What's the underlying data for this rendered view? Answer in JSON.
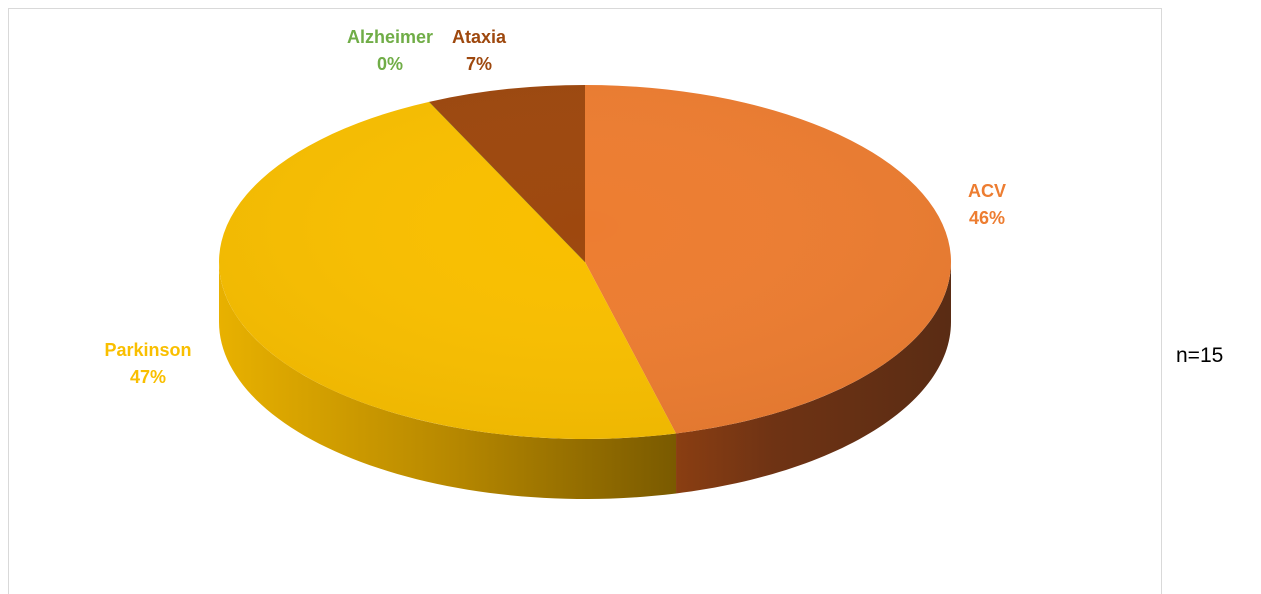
{
  "chart_data": {
    "type": "pie",
    "style": "3d",
    "title": "",
    "slices": [
      {
        "label": "ACV",
        "value": 46,
        "display": "46%",
        "color": "#ED7D31",
        "side_color": "#9E4A12",
        "label_color": "#ED7D31"
      },
      {
        "label": "Parkinson",
        "value": 47,
        "display": "47%",
        "color": "#F9BF00",
        "side_color": "#B98900",
        "label_color": "#F9BF00"
      },
      {
        "label": "Alzheimer",
        "value": 0,
        "display": "0%",
        "color": "#70AD47",
        "side_color": "#4E7A31",
        "label_color": "#70AD47"
      },
      {
        "label": "Ataxia",
        "value": 7,
        "display": "7%",
        "color": "#9E480E",
        "side_color": "#6B2F08",
        "label_color": "#9E480E"
      }
    ],
    "legend": "none",
    "data_labels": "category-and-percent"
  },
  "annotation": {
    "text": "n=15"
  }
}
